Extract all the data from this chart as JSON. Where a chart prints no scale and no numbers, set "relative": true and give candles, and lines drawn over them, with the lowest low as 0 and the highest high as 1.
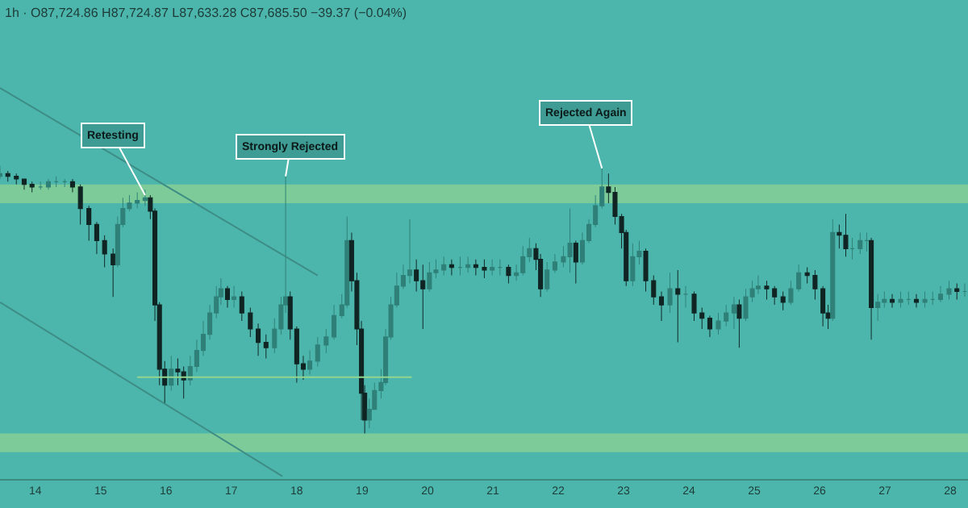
{
  "chart_data": {
    "type": "candlestick",
    "title": "1h · O87,724.86 H87,724.87 L87,633.28 C87,685.50 −39.37 (−0.04%)",
    "relative": true,
    "colors": [
      "#2f8078",
      "#102523",
      "#102523",
      "#102523",
      "#102523",
      "#2f8078",
      "#2f8078",
      "#2f8078",
      "#2f8078",
      "#102523",
      "#102523",
      "#102523",
      "#102523",
      "#102523",
      "#102523",
      "#2f8078",
      "#2f8078",
      "#2f8078",
      "#2f8078",
      "#2f8078",
      "#102523",
      "#102523",
      "#102523",
      "#102523",
      "#2f8078",
      "#102523",
      "#102523",
      "#2f8078",
      "#2f8078",
      "#2f8078",
      "#2f8078",
      "#2f8078",
      "#2f8078",
      "#102523",
      "#2f8078",
      "#102523",
      "#102523",
      "#102523",
      "#102523",
      "#2f8078",
      "#2f8078",
      "#2f8078",
      "#102523",
      "#102523",
      "#102523",
      "#2f8078",
      "#2f8078",
      "#2f8078",
      "#2f8078",
      "#2f8078",
      "#2f8078",
      "#102523",
      "#102523",
      "#102523",
      "#102523",
      "#2f8078",
      "#2f8078",
      "#2f8078",
      "#2f8078",
      "#2f8078",
      "#2f8078",
      "#2f8078",
      "#2f8078",
      "#102523",
      "#102523",
      "#2f8078",
      "#2f8078",
      "#2f8078",
      "#102523",
      "#2f8078",
      "#2f8078",
      "#102523",
      "#102523",
      "#2f8078",
      "#2f8078",
      "#102523",
      "#2f8078",
      "#2f8078",
      "#2f8078",
      "#102523",
      "#102523",
      "#2f8078",
      "#2f8078",
      "#2f8078",
      "#2f8078",
      "#102523",
      "#2f8078",
      "#2f8078",
      "#2f8078",
      "#2f8078",
      "#102523",
      "#102523",
      "#102523",
      "#102523",
      "#2f8078",
      "#2f8078",
      "#102523",
      "#102523",
      "#102523",
      "#2f8078",
      "#102523",
      "#2f8078",
      "#102523",
      "#102523",
      "#102523",
      "#2f8078",
      "#2f8078",
      "#2f8078",
      "#102523",
      "#2f8078",
      "#2f8078",
      "#2f8078",
      "#102523",
      "#102523",
      "#102523",
      "#2f8078",
      "#2f8078",
      "#102523",
      "#102523",
      "#102523",
      "#102523",
      "#2f8078",
      "#102523",
      "#102523",
      "#2f8078",
      "#2f8078",
      "#2f8078",
      "#102523",
      "#2f8078",
      "#2f8078",
      "#102523",
      "#2f8078",
      "#2f8078",
      "#102523",
      "#2f8078",
      "#2f8078",
      "#2f8078",
      "#2f8078",
      "#102523",
      "#2f8078"
    ],
    "legend": false,
    "grid": false,
    "tick_labels": "x",
    "xlim": [
      13.46,
      28.27
    ],
    "xticks": [
      14,
      15,
      16,
      17,
      18,
      19,
      20,
      21,
      22,
      23,
      24,
      25,
      26,
      27,
      28
    ],
    "x": [
      13.46,
      13.58,
      13.71,
      13.83,
      13.95,
      14.08,
      14.2,
      14.32,
      14.45,
      14.57,
      14.69,
      14.82,
      14.94,
      15.06,
      15.19,
      15.26,
      15.34,
      15.44,
      15.56,
      15.68,
      15.76,
      15.83,
      15.9,
      15.98,
      16.08,
      16.18,
      16.27,
      16.37,
      16.47,
      16.57,
      16.67,
      16.77,
      16.84,
      16.94,
      17.04,
      17.16,
      17.29,
      17.41,
      17.53,
      17.66,
      17.76,
      17.83,
      17.9,
      18.0,
      18.1,
      18.2,
      18.32,
      18.45,
      18.57,
      18.69,
      18.77,
      18.84,
      18.92,
      18.99,
      19.04,
      19.11,
      19.19,
      19.29,
      19.36,
      19.44,
      19.53,
      19.63,
      19.73,
      19.83,
      19.93,
      20.03,
      20.13,
      20.25,
      20.37,
      20.5,
      20.62,
      20.74,
      20.87,
      20.99,
      21.11,
      21.24,
      21.36,
      21.46,
      21.56,
      21.66,
      21.73,
      21.83,
      21.95,
      22.08,
      22.18,
      22.27,
      22.37,
      22.47,
      22.57,
      22.67,
      22.77,
      22.87,
      22.97,
      23.04,
      23.14,
      23.24,
      23.34,
      23.46,
      23.58,
      23.71,
      23.83,
      23.95,
      24.08,
      24.2,
      24.32,
      24.45,
      24.57,
      24.69,
      24.77,
      24.87,
      24.97,
      25.06,
      25.19,
      25.31,
      25.44,
      25.56,
      25.68,
      25.81,
      25.93,
      26.05,
      26.13,
      26.2,
      26.3,
      26.4,
      26.5,
      26.62,
      26.72,
      26.79,
      26.89,
      26.99,
      27.11,
      27.24,
      27.36,
      27.48,
      27.61,
      27.73,
      27.85,
      27.98,
      28.1,
      28.22
    ],
    "ohlc": [
      [
        0.96,
        1.0,
        0.95,
        0.97
      ],
      [
        0.97,
        0.98,
        0.94,
        0.96
      ],
      [
        0.96,
        0.97,
        0.93,
        0.95
      ],
      [
        0.95,
        0.95,
        0.91,
        0.93
      ],
      [
        0.93,
        0.94,
        0.9,
        0.92
      ],
      [
        0.92,
        0.94,
        0.91,
        0.92
      ],
      [
        0.92,
        0.95,
        0.91,
        0.94
      ],
      [
        0.94,
        0.96,
        0.92,
        0.94
      ],
      [
        0.94,
        0.95,
        0.92,
        0.94
      ],
      [
        0.94,
        0.95,
        0.9,
        0.92
      ],
      [
        0.92,
        0.93,
        0.78,
        0.84
      ],
      [
        0.84,
        0.85,
        0.72,
        0.78
      ],
      [
        0.78,
        0.79,
        0.67,
        0.72
      ],
      [
        0.72,
        0.74,
        0.62,
        0.67
      ],
      [
        0.67,
        0.69,
        0.51,
        0.63
      ],
      [
        0.63,
        0.81,
        0.62,
        0.78
      ],
      [
        0.78,
        0.88,
        0.77,
        0.84
      ],
      [
        0.84,
        0.89,
        0.83,
        0.86
      ],
      [
        0.86,
        0.9,
        0.84,
        0.87
      ],
      [
        0.87,
        0.91,
        0.85,
        0.88
      ],
      [
        0.88,
        0.89,
        0.8,
        0.83
      ],
      [
        0.83,
        0.84,
        0.42,
        0.48
      ],
      [
        0.48,
        0.49,
        0.18,
        0.24
      ],
      [
        0.24,
        0.27,
        0.11,
        0.18
      ],
      [
        0.18,
        0.29,
        0.16,
        0.24
      ],
      [
        0.24,
        0.28,
        0.18,
        0.23
      ],
      [
        0.23,
        0.25,
        0.13,
        0.2
      ],
      [
        0.2,
        0.29,
        0.18,
        0.25
      ],
      [
        0.25,
        0.35,
        0.23,
        0.31
      ],
      [
        0.31,
        0.42,
        0.29,
        0.37
      ],
      [
        0.37,
        0.48,
        0.35,
        0.45
      ],
      [
        0.45,
        0.55,
        0.43,
        0.51
      ],
      [
        0.51,
        0.58,
        0.48,
        0.54
      ],
      [
        0.54,
        0.55,
        0.47,
        0.5
      ],
      [
        0.5,
        0.55,
        0.47,
        0.51
      ],
      [
        0.51,
        0.53,
        0.42,
        0.45
      ],
      [
        0.45,
        0.47,
        0.36,
        0.39
      ],
      [
        0.39,
        0.41,
        0.29,
        0.34
      ],
      [
        0.34,
        0.37,
        0.28,
        0.32
      ],
      [
        0.32,
        0.43,
        0.3,
        0.39
      ],
      [
        0.39,
        0.51,
        0.37,
        0.48
      ],
      [
        0.48,
        0.96,
        0.45,
        0.51
      ],
      [
        0.51,
        0.53,
        0.35,
        0.39
      ],
      [
        0.39,
        0.4,
        0.19,
        0.26
      ],
      [
        0.26,
        0.29,
        0.2,
        0.24
      ],
      [
        0.24,
        0.31,
        0.22,
        0.27
      ],
      [
        0.27,
        0.36,
        0.25,
        0.33
      ],
      [
        0.33,
        0.39,
        0.3,
        0.36
      ],
      [
        0.36,
        0.48,
        0.35,
        0.44
      ],
      [
        0.44,
        0.52,
        0.43,
        0.48
      ],
      [
        0.48,
        0.81,
        0.47,
        0.72
      ],
      [
        0.72,
        0.75,
        0.53,
        0.57
      ],
      [
        0.57,
        0.6,
        0.33,
        0.39
      ],
      [
        0.39,
        0.42,
        0.05,
        0.15
      ],
      [
        0.15,
        0.18,
        0,
        0.05
      ],
      [
        0.05,
        0.13,
        0.02,
        0.09
      ],
      [
        0.09,
        0.19,
        0.09,
        0.16
      ],
      [
        0.16,
        0.24,
        0.13,
        0.19
      ],
      [
        0.19,
        0.39,
        0.18,
        0.36
      ],
      [
        0.36,
        0.51,
        0.35,
        0.48
      ],
      [
        0.48,
        0.6,
        0.47,
        0.55
      ],
      [
        0.55,
        0.63,
        0.54,
        0.59
      ],
      [
        0.59,
        0.8,
        0.56,
        0.61
      ],
      [
        0.61,
        0.65,
        0.53,
        0.57
      ],
      [
        0.57,
        0.63,
        0.39,
        0.54
      ],
      [
        0.54,
        0.64,
        0.53,
        0.6
      ],
      [
        0.6,
        0.65,
        0.58,
        0.61
      ],
      [
        0.61,
        0.66,
        0.59,
        0.63
      ],
      [
        0.63,
        0.65,
        0.59,
        0.62
      ],
      [
        0.62,
        0.66,
        0.59,
        0.62
      ],
      [
        0.62,
        0.66,
        0.6,
        0.63
      ],
      [
        0.63,
        0.65,
        0.59,
        0.62
      ],
      [
        0.62,
        0.65,
        0.58,
        0.61
      ],
      [
        0.61,
        0.65,
        0.59,
        0.62
      ],
      [
        0.62,
        0.65,
        0.59,
        0.62
      ],
      [
        0.62,
        0.63,
        0.56,
        0.59
      ],
      [
        0.59,
        0.63,
        0.57,
        0.6
      ],
      [
        0.6,
        0.7,
        0.59,
        0.66
      ],
      [
        0.66,
        0.73,
        0.64,
        0.69
      ],
      [
        0.69,
        0.71,
        0.61,
        0.65
      ],
      [
        0.65,
        0.67,
        0.51,
        0.54
      ],
      [
        0.54,
        0.64,
        0.53,
        0.61
      ],
      [
        0.61,
        0.67,
        0.6,
        0.64
      ],
      [
        0.64,
        0.7,
        0.62,
        0.66
      ],
      [
        0.66,
        0.84,
        0.6,
        0.71
      ],
      [
        0.71,
        0.72,
        0.56,
        0.64
      ],
      [
        0.64,
        0.75,
        0.63,
        0.72
      ],
      [
        0.72,
        0.8,
        0.71,
        0.78
      ],
      [
        0.78,
        0.89,
        0.77,
        0.85
      ],
      [
        0.85,
        0.99,
        0.84,
        0.92
      ],
      [
        0.92,
        0.97,
        0.86,
        0.9
      ],
      [
        0.9,
        0.92,
        0.78,
        0.81
      ],
      [
        0.81,
        0.82,
        0.69,
        0.75
      ],
      [
        0.75,
        0.76,
        0.55,
        0.57
      ],
      [
        0.57,
        0.71,
        0.55,
        0.66
      ],
      [
        0.66,
        0.72,
        0.63,
        0.68
      ],
      [
        0.68,
        0.69,
        0.53,
        0.57
      ],
      [
        0.57,
        0.59,
        0.48,
        0.51
      ],
      [
        0.51,
        0.53,
        0.42,
        0.48
      ],
      [
        0.48,
        0.6,
        0.45,
        0.54
      ],
      [
        0.54,
        0.61,
        0.34,
        0.52
      ],
      [
        0.52,
        0.55,
        0.47,
        0.52
      ],
      [
        0.52,
        0.53,
        0.42,
        0.45
      ],
      [
        0.45,
        0.47,
        0.39,
        0.43
      ],
      [
        0.43,
        0.44,
        0.36,
        0.39
      ],
      [
        0.39,
        0.45,
        0.37,
        0.42
      ],
      [
        0.42,
        0.48,
        0.4,
        0.45
      ],
      [
        0.45,
        0.51,
        0.39,
        0.48
      ],
      [
        0.48,
        0.5,
        0.32,
        0.43
      ],
      [
        0.43,
        0.54,
        0.42,
        0.51
      ],
      [
        0.51,
        0.57,
        0.49,
        0.54
      ],
      [
        0.54,
        0.59,
        0.52,
        0.55
      ],
      [
        0.55,
        0.57,
        0.5,
        0.54
      ],
      [
        0.54,
        0.55,
        0.48,
        0.51
      ],
      [
        0.51,
        0.53,
        0.46,
        0.49
      ],
      [
        0.49,
        0.57,
        0.48,
        0.54
      ],
      [
        0.54,
        0.63,
        0.53,
        0.6
      ],
      [
        0.6,
        0.62,
        0.56,
        0.59
      ],
      [
        0.59,
        0.61,
        0.5,
        0.54
      ],
      [
        0.54,
        0.55,
        0.4,
        0.45
      ],
      [
        0.45,
        0.48,
        0.39,
        0.43
      ],
      [
        0.43,
        0.8,
        0.42,
        0.75
      ],
      [
        0.75,
        0.78,
        0.69,
        0.74
      ],
      [
        0.74,
        0.82,
        0.66,
        0.69
      ],
      [
        0.69,
        0.73,
        0.65,
        0.69
      ],
      [
        0.69,
        0.75,
        0.67,
        0.72
      ],
      [
        0.72,
        0.75,
        0.68,
        0.72
      ],
      [
        0.72,
        0.73,
        0.35,
        0.47
      ],
      [
        0.47,
        0.52,
        0.42,
        0.49
      ],
      [
        0.49,
        0.53,
        0.47,
        0.5
      ],
      [
        0.5,
        0.52,
        0.47,
        0.49
      ],
      [
        0.49,
        0.53,
        0.47,
        0.5
      ],
      [
        0.5,
        0.53,
        0.48,
        0.5
      ],
      [
        0.5,
        0.52,
        0.47,
        0.49
      ],
      [
        0.49,
        0.53,
        0.47,
        0.5
      ],
      [
        0.5,
        0.53,
        0.48,
        0.5
      ],
      [
        0.5,
        0.55,
        0.49,
        0.52
      ],
      [
        0.52,
        0.57,
        0.5,
        0.54
      ],
      [
        0.54,
        0.56,
        0.5,
        0.53
      ],
      [
        0.53,
        0.56,
        0.51,
        0.53
      ]
    ],
    "series": [
      {
        "type": "line",
        "color": "#3d8d86",
        "x": [
          13.46,
          18.32
        ],
        "values": [
          1.29,
          0.59
        ]
      },
      {
        "type": "line",
        "color": "#3d8d86",
        "x": [
          13.46,
          17.78
        ],
        "values": [
          0.49,
          -0.16
        ]
      },
      {
        "type": "line",
        "color": "#93d58f",
        "x": [
          15.56,
          19.76
        ],
        "values": [
          0.21,
          0.21
        ]
      }
    ],
    "bands": [
      {
        "axis": "y",
        "from": 0.86,
        "to": 0.93,
        "color": "#7ccb98"
      },
      {
        "axis": "y",
        "from": -0.07,
        "to": 0,
        "color": "#7ccb98"
      }
    ],
    "annotations": [
      {
        "text": "Retesting",
        "x": 15.68,
        "y": 0.89
      },
      {
        "text": "Strongly Rejected",
        "x": 17.83,
        "y": 0.96
      },
      {
        "text": "Rejected Again",
        "x": 22.67,
        "y": 0.99
      }
    ]
  }
}
